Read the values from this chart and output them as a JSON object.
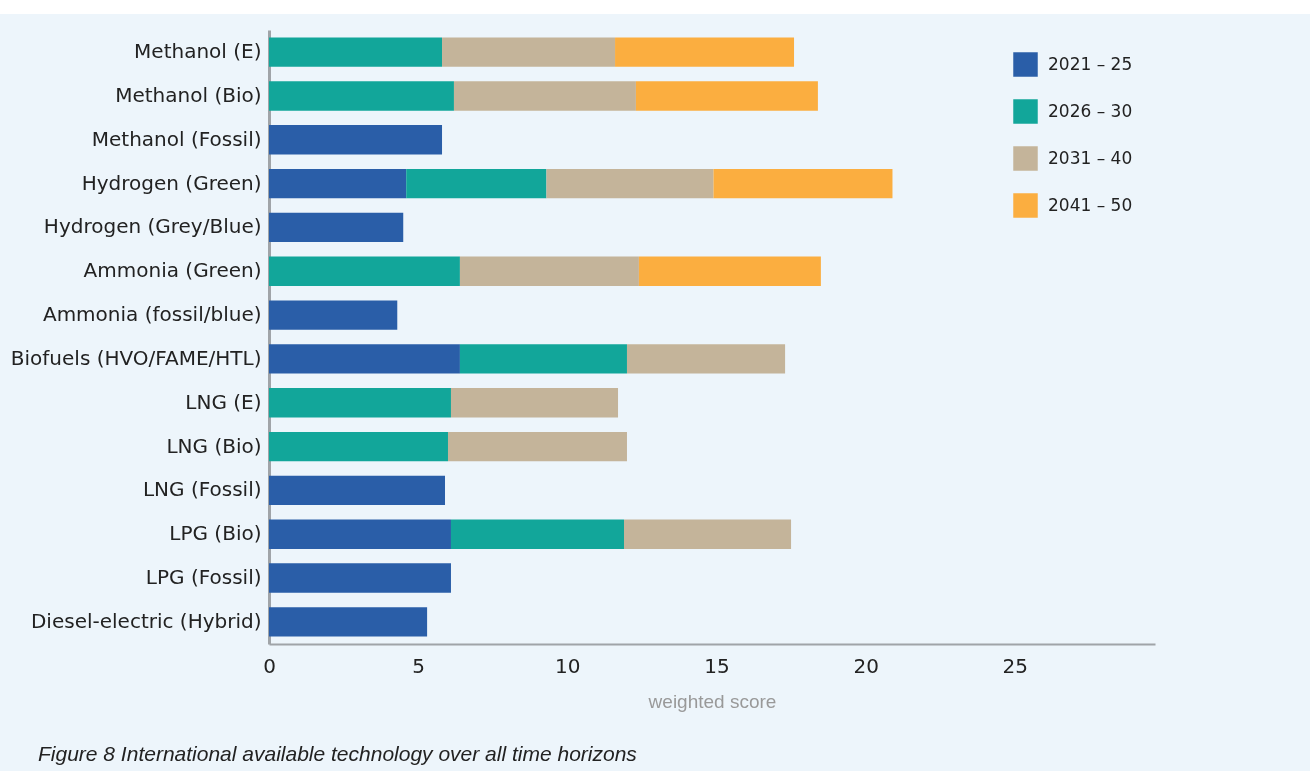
{
  "chart_data": {
    "type": "bar",
    "orientation": "horizontal",
    "stacked": true,
    "categories": [
      "Methanol (E)",
      "Methanol (Bio)",
      "Methanol (Fossil)",
      "Hydrogen (Green)",
      "Hydrogen (Grey/Blue)",
      "Ammonia (Green)",
      "Ammonia (fossil/blue)",
      "Biofuels (HVO/FAME/HTL)",
      "LNG (E)",
      "LNG (Bio)",
      "LNG (Fossil)",
      "LPG (Bio)",
      "LPG (Fossil)",
      "Diesel-electric (Hybrid)"
    ],
    "series": [
      {
        "name": "2021 – 25",
        "color": "#2a5ea8",
        "values": [
          null,
          null,
          5.8,
          4.6,
          4.5,
          null,
          4.3,
          6.4,
          null,
          null,
          5.9,
          6.1,
          6.1,
          5.3
        ]
      },
      {
        "name": "2026 – 30",
        "color": "#12a69a",
        "values": [
          5.8,
          6.2,
          null,
          4.7,
          null,
          6.4,
          null,
          5.6,
          6.1,
          6.0,
          null,
          5.8,
          null,
          null
        ]
      },
      {
        "name": "2031 – 40",
        "color": "#c4b49a",
        "values": [
          5.8,
          6.1,
          null,
          5.6,
          null,
          6.0,
          null,
          5.3,
          5.6,
          6.0,
          null,
          5.6,
          null,
          null
        ]
      },
      {
        "name": "2041 – 50",
        "color": "#fbae40",
        "values": [
          6.0,
          6.1,
          null,
          6.0,
          null,
          6.1,
          null,
          null,
          null,
          null,
          null,
          null,
          null,
          null
        ]
      }
    ],
    "xlim": [
      0,
      29.7
    ],
    "xticks": [
      0,
      5,
      10,
      15,
      20,
      25
    ],
    "xlabel": "weighted score",
    "legend": "top right",
    "grid": false,
    "annotations": [
      "Figure 8 International available technology over all time horizons"
    ]
  }
}
